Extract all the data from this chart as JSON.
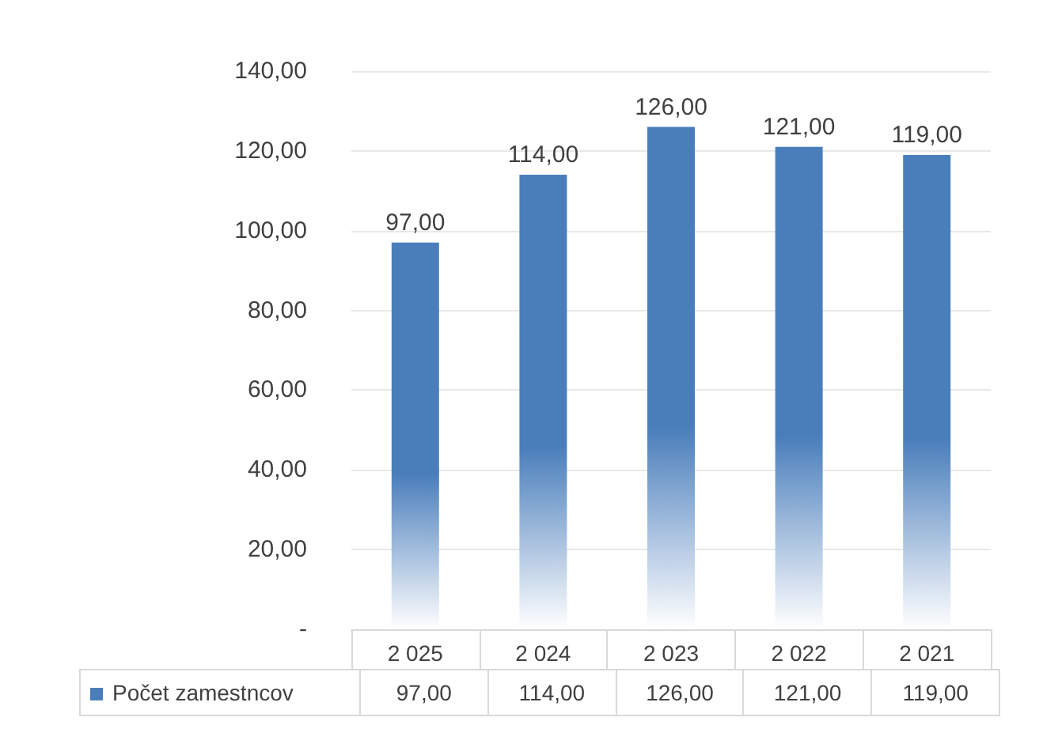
{
  "chart_data": {
    "type": "bar",
    "categories": [
      "2 025",
      "2 024",
      "2 023",
      "2 022",
      "2 021"
    ],
    "series": [
      {
        "name": "Počet zamestncov",
        "color": "#4a7ebb",
        "values": [
          97,
          114,
          126,
          121,
          119
        ],
        "value_labels": [
          "97,00",
          "114,00",
          "126,00",
          "121,00",
          "119,00"
        ]
      }
    ],
    "ylim": [
      0,
      140
    ],
    "yticks": [
      {
        "value": 0,
        "label": "-"
      },
      {
        "value": 20,
        "label": "20,00"
      },
      {
        "value": 40,
        "label": "40,00"
      },
      {
        "value": 60,
        "label": "60,00"
      },
      {
        "value": 80,
        "label": "80,00"
      },
      {
        "value": 100,
        "label": "100,00"
      },
      {
        "value": 120,
        "label": "120,00"
      },
      {
        "value": 140,
        "label": "140,00"
      }
    ],
    "grid": "y",
    "legend": "bottom"
  }
}
